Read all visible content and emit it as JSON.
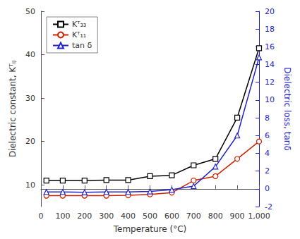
{
  "chart_data": {
    "type": "line",
    "xlabel": "Temperature (°C)",
    "ylabel": "Dielectric constant, Kᵀᵢⱼ",
    "y2label": "Dielectric loss, tanδ",
    "x": [
      25,
      100,
      200,
      300,
      400,
      500,
      600,
      700,
      800,
      900,
      1000
    ],
    "series": [
      {
        "name": "Kᵀ₃₃",
        "color": "#000000",
        "marker": "square",
        "values": [
          11.0,
          11.0,
          11.0,
          11.1,
          11.1,
          12.0,
          12.2,
          14.5,
          16.0,
          25.5,
          41.5
        ]
      },
      {
        "name": "Kᵀ₁₁",
        "color": "#cc2200",
        "marker": "circle",
        "values": [
          7.5,
          7.5,
          7.5,
          7.5,
          7.6,
          7.8,
          8.2,
          11.0,
          12.0,
          16.0,
          20.0
        ]
      },
      {
        "name": "tan δ",
        "color": "#2222cc",
        "marker": "triangle",
        "axis": "y2",
        "values": [
          -0.35,
          -0.35,
          -0.4,
          -0.35,
          -0.35,
          -0.3,
          -0.1,
          0.3,
          2.5,
          6.0,
          14.8
        ]
      }
    ],
    "xlim": [
      0,
      1000
    ],
    "xticks": [
      0,
      100,
      200,
      300,
      400,
      500,
      600,
      700,
      800,
      900,
      1000
    ],
    "ylim": [
      5,
      50
    ],
    "yticks": [
      10,
      20,
      30,
      40,
      50
    ],
    "y2lim": [
      -2,
      20
    ],
    "y2ticks": [
      -2,
      0,
      2,
      4,
      6,
      8,
      10,
      12,
      14,
      16,
      18,
      20
    ],
    "grid": false,
    "legend": "upper left"
  }
}
